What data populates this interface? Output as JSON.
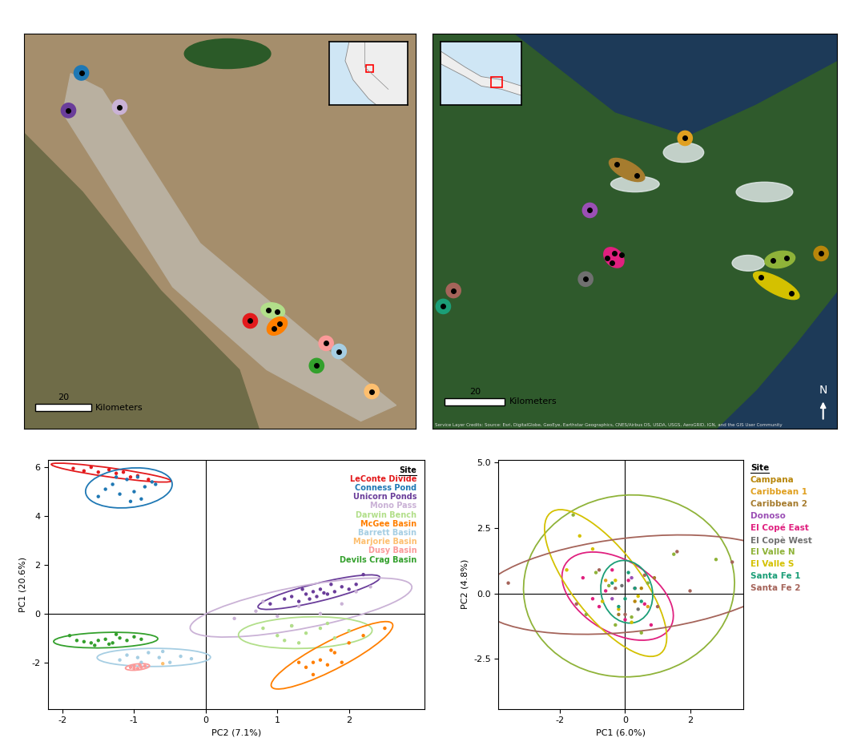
{
  "chart_data": [
    {
      "type": "scatter",
      "x_label": "PC2 (7.1%)",
      "y_label": "PC1 (20.6%)",
      "legend_title": "Site",
      "legend": "upper right",
      "marker": "o",
      "xlim": [
        -2.2,
        3.05
      ],
      "ylim": [
        -3.9,
        6.3
      ],
      "xticks": [
        -2,
        -1,
        0,
        1,
        2
      ],
      "yticks": [
        -2,
        0,
        2,
        4,
        6
      ],
      "hline": 0,
      "vline": 0,
      "series": [
        {
          "name": "LeConte Divide",
          "color": "#e31a1c",
          "x": [
            -1.85,
            -1.7,
            -1.6,
            -1.5,
            -1.35,
            -1.25,
            -1.15,
            -1.05,
            -0.95,
            -0.8
          ],
          "y": [
            5.95,
            5.85,
            6.0,
            5.8,
            5.9,
            5.75,
            5.8,
            5.6,
            5.65,
            5.5
          ]
        },
        {
          "name": "Conness Pond",
          "color": "#1f78b4",
          "x": [
            -1.5,
            -1.4,
            -1.3,
            -1.2,
            -1.1,
            -1.0,
            -0.95,
            -0.85,
            -0.75,
            -0.7,
            -1.25,
            -1.05,
            -0.9
          ],
          "y": [
            4.8,
            5.1,
            5.3,
            4.9,
            5.5,
            5.0,
            5.6,
            5.2,
            5.4,
            5.3,
            5.6,
            4.6,
            4.7
          ]
        },
        {
          "name": "Unicorn Ponds",
          "color": "#6a3d9a",
          "x": [
            0.9,
            1.1,
            1.2,
            1.3,
            1.4,
            1.5,
            1.55,
            1.6,
            1.7,
            1.8,
            1.9,
            2.0,
            2.1,
            2.2,
            1.45,
            1.65,
            1.35,
            1.75
          ],
          "y": [
            0.4,
            0.6,
            0.7,
            0.5,
            0.8,
            0.9,
            0.7,
            1.0,
            0.8,
            0.9,
            1.1,
            1.0,
            1.2,
            1.6,
            0.6,
            0.85,
            1.0,
            1.2
          ]
        },
        {
          "name": "Mono Pass",
          "color": "#cab2d6",
          "x": [
            0.4,
            0.7,
            1.0,
            1.3,
            1.6,
            1.9,
            2.1,
            2.3,
            1.2,
            0.8
          ],
          "y": [
            -0.2,
            0.1,
            -0.1,
            0.3,
            0.0,
            0.4,
            0.9,
            1.1,
            -0.5,
            0.5
          ]
        },
        {
          "name": "Darwin Bench",
          "color": "#b2df8a",
          "x": [
            0.8,
            1.0,
            1.2,
            1.4,
            1.6,
            1.8,
            2.0,
            1.3,
            1.7,
            1.1
          ],
          "y": [
            -0.6,
            -0.9,
            -0.5,
            -0.8,
            -0.6,
            -1.0,
            -0.7,
            -1.2,
            -0.4,
            -1.1
          ]
        },
        {
          "name": "McGee Basin",
          "color": "#ff7f00",
          "x": [
            1.3,
            1.4,
            1.5,
            1.6,
            1.7,
            1.8,
            1.9,
            2.0,
            2.2,
            2.5,
            1.5,
            1.75
          ],
          "y": [
            -2.0,
            -2.2,
            -2.0,
            -1.9,
            -2.1,
            -1.6,
            -2.0,
            -1.2,
            -0.9,
            -0.6,
            -2.5,
            -1.5
          ]
        },
        {
          "name": "Barrett Basin",
          "color": "#a6cee3",
          "x": [
            -1.2,
            -1.1,
            -0.9,
            -0.8,
            -0.65,
            -0.5,
            -0.35,
            -0.2,
            -0.6,
            -0.95
          ],
          "y": [
            -1.9,
            -1.7,
            -2.0,
            -1.6,
            -1.8,
            -2.0,
            -1.75,
            -1.85,
            -1.55,
            -1.8
          ]
        },
        {
          "name": "Marjorie Basin",
          "color": "#fdbf6f",
          "x": [
            -0.6
          ],
          "y": [
            -2.05
          ]
        },
        {
          "name": "Dusy Basin",
          "color": "#fb9a99",
          "x": [
            -1.05,
            -1.0,
            -0.95,
            -0.9,
            -0.85,
            -1.0,
            -0.92
          ],
          "y": [
            -2.2,
            -2.15,
            -2.25,
            -2.2,
            -2.15,
            -2.25,
            -2.1
          ]
        },
        {
          "name": "Devils Crag Basin",
          "color": "#33a02c",
          "x": [
            -1.9,
            -1.8,
            -1.7,
            -1.6,
            -1.5,
            -1.4,
            -1.3,
            -1.2,
            -1.1,
            -1.0,
            -0.9,
            -1.55,
            -1.35,
            -1.25
          ],
          "y": [
            -0.9,
            -1.1,
            -1.15,
            -1.2,
            -1.1,
            -1.05,
            -1.2,
            -1.0,
            -1.1,
            -0.95,
            -1.05,
            -1.3,
            -1.25,
            -0.85
          ]
        }
      ]
    },
    {
      "type": "scatter",
      "x_label": "PC1 (6.0%)",
      "y_label": "PC2 (4.8%)",
      "legend_title": "Site",
      "legend": "right",
      "marker": "o",
      "xlim": [
        -3.9,
        3.65
      ],
      "ylim": [
        -4.4,
        5.1
      ],
      "xticks": [
        -2,
        0,
        2
      ],
      "yticks": [
        -2.5,
        0.0,
        2.5,
        5.0
      ],
      "hline": 0,
      "vline": 0,
      "series": [
        {
          "name": "Campana",
          "color": "#b8860b",
          "x": [
            0.3,
            0.5
          ],
          "y": [
            -0.3,
            0.2
          ]
        },
        {
          "name": "Caribbean 1",
          "color": "#e0a020",
          "x": [
            -0.6,
            0.7
          ],
          "y": [
            0.5,
            -0.5
          ]
        },
        {
          "name": "Caribbean 2",
          "color": "#a67c2e",
          "x": [
            -0.2,
            0.9
          ],
          "y": [
            -0.8,
            0.6
          ]
        },
        {
          "name": "Donoso",
          "color": "#9b4fb5",
          "x": [
            -0.4,
            0.2
          ],
          "y": [
            -0.2,
            0.6
          ]
        },
        {
          "name": "El Copé East",
          "color": "#e0207f",
          "x": [
            -1.3,
            -0.8,
            -0.4,
            0.0,
            0.3,
            0.6,
            -0.6,
            0.1,
            0.8,
            -1.0
          ],
          "y": [
            0.6,
            -0.5,
            0.9,
            -1.0,
            0.2,
            -0.4,
            0.1,
            0.5,
            -1.2,
            -0.2
          ]
        },
        {
          "name": "El Copè West",
          "color": "#707070",
          "x": [
            -0.1,
            0.4
          ],
          "y": [
            0.3,
            -0.6
          ]
        },
        {
          "name": "El Valle N",
          "color": "#8fb339",
          "x": [
            -1.6,
            -1.2,
            -0.5,
            0.2,
            0.7,
            1.5,
            2.8,
            -0.9,
            0.5,
            -0.3
          ],
          "y": [
            3.0,
            -0.8,
            0.3,
            -0.9,
            0.4,
            1.5,
            1.3,
            0.8,
            -1.5,
            -1.2
          ]
        },
        {
          "name": "El Valle S",
          "color": "#d4c100",
          "x": [
            -1.8,
            -1.0,
            -0.7,
            -0.3,
            0.2,
            -1.4,
            -0.2,
            0.4
          ],
          "y": [
            0.9,
            1.7,
            -0.3,
            0.5,
            -1.1,
            2.2,
            -0.6,
            -0.1
          ]
        },
        {
          "name": "Santa Fe 1",
          "color": "#1b9e77",
          "x": [
            -0.4,
            0.1,
            0.5,
            -0.2,
            0.3,
            0.0
          ],
          "y": [
            0.4,
            0.8,
            -0.3,
            -0.5,
            0.2,
            -0.2
          ]
        },
        {
          "name": "Santa Fe 2",
          "color": "#a5645a",
          "x": [
            -3.6,
            -1.5,
            -0.8,
            0.0,
            0.6,
            1.6,
            3.3,
            1.0,
            -0.3,
            2.0
          ],
          "y": [
            0.4,
            -0.4,
            0.9,
            -0.8,
            0.7,
            1.6,
            1.2,
            -0.5,
            0.2,
            0.1
          ]
        }
      ]
    }
  ],
  "maps": [
    {
      "xlim": [
        0,
        140
      ],
      "ylim": [
        0,
        141
      ],
      "tick_labels": false,
      "scale_bar": {
        "length": 20,
        "label": "Kilometers"
      },
      "sites": [
        {
          "name": "Conness Pond",
          "points": [
            [
              20.6,
              127.1
            ]
          ]
        },
        {
          "name": "Unicorn Ponds",
          "points": [
            [
              16.0,
              113.7
            ]
          ]
        },
        {
          "name": "Mono Pass",
          "points": [
            [
              34.3,
              114.9
            ]
          ]
        },
        {
          "name": "LeConte Divide",
          "points": [
            [
              80.9,
              38.6
            ]
          ]
        },
        {
          "name": "Darwin Bench",
          "points": [
            [
              87.5,
              42.5
            ],
            [
              90.5,
              42.0
            ]
          ]
        },
        {
          "name": "McGee Basin",
          "points": [
            [
              89.5,
              36.0
            ],
            [
              91.5,
              37.5
            ]
          ]
        },
        {
          "name": "Dusy Basin",
          "points": [
            [
              108.0,
              30.6
            ]
          ]
        },
        {
          "name": "Barrett Basin",
          "points": [
            [
              112.6,
              27.7
            ]
          ]
        },
        {
          "name": "Devils Crag Basin",
          "points": [
            [
              104.6,
              22.6
            ]
          ]
        },
        {
          "name": "Marjorie Basin",
          "points": [
            [
              124.3,
              13.4
            ]
          ]
        }
      ]
    },
    {
      "xlim": [
        0,
        134.7
      ],
      "ylim": [
        0,
        131.5
      ],
      "tick_labels": false,
      "scale_bar": {
        "length": 20,
        "label": "Kilometers"
      },
      "north_arrow": "N",
      "credits": "Service Layer Credits: Source: Esri, DigitalGlobe, GeoEye, Earthstar Geographics, CNES/Airbus DS, USDA, USGS, AeroGRID, IGN, and the GIS User Community",
      "sites": [
        {
          "name": "Caribbean 1",
          "points": [
            [
              84.0,
              96.8
            ]
          ]
        },
        {
          "name": "Caribbean 2",
          "points": [
            [
              61.3,
              88.0
            ],
            [
              68.0,
              84.5
            ]
          ]
        },
        {
          "name": "Donoso",
          "points": [
            [
              52.3,
              72.8
            ]
          ]
        },
        {
          "name": "El Copé East",
          "points": [
            [
              58.1,
              56.8
            ],
            [
              60.5,
              58.4
            ],
            [
              62.9,
              57.9
            ],
            [
              59.7,
              55.2
            ]
          ]
        },
        {
          "name": "El Copè West",
          "points": [
            [
              50.9,
              49.9
            ]
          ]
        },
        {
          "name": "Santa Fe 2",
          "points": [
            [
              6.9,
              46.1
            ]
          ]
        },
        {
          "name": "Santa Fe 1",
          "points": [
            [
              3.5,
              40.8
            ]
          ]
        },
        {
          "name": "El Valle N",
          "points": [
            [
              113.3,
              56.0
            ],
            [
              117.9,
              56.8
            ]
          ]
        },
        {
          "name": "El Valle S",
          "points": [
            [
              109.3,
              50.4
            ],
            [
              119.5,
              45.1
            ]
          ]
        },
        {
          "name": "Campana",
          "points": [
            [
              129.3,
              58.4
            ]
          ]
        }
      ]
    }
  ]
}
